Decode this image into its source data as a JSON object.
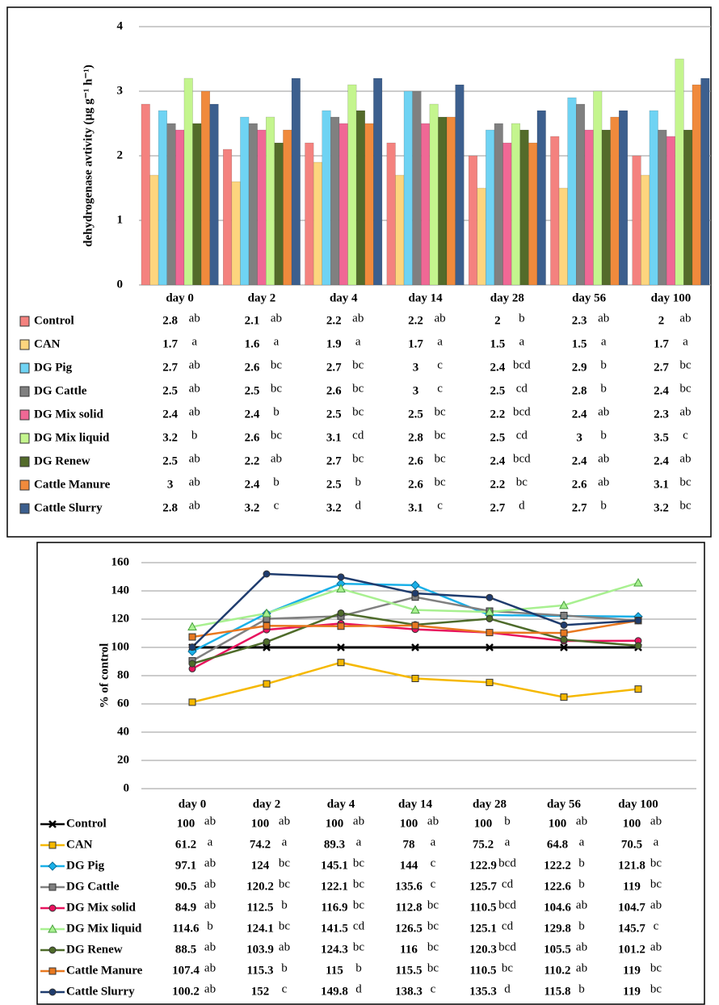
{
  "chart_data": [
    {
      "type": "bar",
      "ylabel": "dehydrogenase avtivity (µg g⁻¹ h⁻¹)",
      "ylim": [
        0,
        4
      ],
      "yticks": [
        0,
        1,
        2,
        3,
        4
      ],
      "grid": true,
      "categories": [
        "day 0",
        "day 2",
        "day 4",
        "day 14",
        "day 28",
        "day 56",
        "day 100"
      ],
      "series": [
        {
          "name": "Control",
          "color": "#f4827f",
          "values": [
            2.8,
            2.1,
            2.2,
            2.2,
            2,
            2.3,
            2
          ],
          "letters": [
            "ab",
            "ab",
            "ab",
            "ab",
            "b",
            "ab",
            "ab"
          ]
        },
        {
          "name": "CAN",
          "color": "#fdd57e",
          "values": [
            1.7,
            1.6,
            1.9,
            1.7,
            1.5,
            1.5,
            1.7
          ],
          "letters": [
            "a",
            "a",
            "a",
            "a",
            "a",
            "a",
            "a"
          ]
        },
        {
          "name": "DG Pig",
          "color": "#6fd3f3",
          "values": [
            2.7,
            2.6,
            2.7,
            3,
            2.4,
            2.9,
            2.7
          ],
          "letters": [
            "ab",
            "bc",
            "bc",
            "c",
            "bcd",
            "b",
            "bc"
          ]
        },
        {
          "name": "DG Cattle",
          "color": "#808080",
          "values": [
            2.5,
            2.5,
            2.6,
            3,
            2.5,
            2.8,
            2.4
          ],
          "letters": [
            "ab",
            "bc",
            "bc",
            "c",
            "cd",
            "b",
            "bc"
          ]
        },
        {
          "name": "DG Mix solid",
          "color": "#f06895",
          "values": [
            2.4,
            2.4,
            2.5,
            2.5,
            2.2,
            2.4,
            2.3
          ],
          "letters": [
            "ab",
            "b",
            "bc",
            "bc",
            "bcd",
            "ab",
            "ab"
          ]
        },
        {
          "name": "DG Mix liquid",
          "color": "#c4f58e",
          "values": [
            3.2,
            2.6,
            3.1,
            2.8,
            2.5,
            3,
            3.5
          ],
          "letters": [
            "b",
            "bc",
            "cd",
            "bc",
            "cd",
            "b",
            "c"
          ]
        },
        {
          "name": "DG Renew",
          "color": "#536b2a",
          "values": [
            2.5,
            2.2,
            2.7,
            2.6,
            2.4,
            2.4,
            2.4
          ],
          "letters": [
            "ab",
            "ab",
            "bc",
            "bc",
            "bcd",
            "ab",
            "ab"
          ]
        },
        {
          "name": "Cattle Manure",
          "color": "#f08a3c",
          "values": [
            3,
            2.4,
            2.5,
            2.6,
            2.2,
            2.6,
            3.1
          ],
          "letters": [
            "ab",
            "b",
            "b",
            "bc",
            "bc",
            "ab",
            "bc"
          ]
        },
        {
          "name": "Cattle Slurry",
          "color": "#3c5f8e",
          "values": [
            2.8,
            3.2,
            3.2,
            3.1,
            2.7,
            2.7,
            3.2
          ],
          "letters": [
            "ab",
            "c",
            "d",
            "c",
            "d",
            "b",
            "bc"
          ]
        }
      ]
    },
    {
      "type": "line",
      "ylabel": "% of control",
      "ylim": [
        0,
        160
      ],
      "yticks": [
        0,
        20,
        40,
        60,
        80,
        100,
        120,
        140,
        160
      ],
      "grid": true,
      "categories": [
        "day 0",
        "day 2",
        "day 4",
        "day 14",
        "day 28",
        "day 56",
        "day 100"
      ],
      "series": [
        {
          "name": "Control",
          "color": "#000000",
          "marker": "x",
          "values": [
            100,
            100,
            100,
            100,
            100,
            100,
            100
          ],
          "letters": [
            "ab",
            "ab",
            "ab",
            "ab",
            "b",
            "ab",
            "ab"
          ]
        },
        {
          "name": "CAN",
          "color": "#f5b800",
          "marker": "square",
          "values": [
            61.2,
            74.2,
            89.3,
            78,
            75.2,
            64.8,
            70.5
          ],
          "letters": [
            "a",
            "a",
            "a",
            "a",
            "a",
            "a",
            "a"
          ]
        },
        {
          "name": "DG Pig",
          "color": "#1ab0e8",
          "marker": "diamond",
          "values": [
            97.1,
            124,
            145.1,
            144,
            122.9,
            122.2,
            121.8
          ],
          "letters": [
            "ab",
            "bc",
            "bc",
            "c",
            "bcd",
            "b",
            "bc"
          ]
        },
        {
          "name": "DG Cattle",
          "color": "#808080",
          "marker": "square",
          "values": [
            90.5,
            120.2,
            122.1,
            135.6,
            125.7,
            122.6,
            119
          ],
          "letters": [
            "ab",
            "bc",
            "bc",
            "c",
            "cd",
            "b",
            "bc"
          ]
        },
        {
          "name": "DG Mix solid",
          "color": "#e8135e",
          "marker": "circle",
          "values": [
            84.9,
            112.5,
            116.9,
            112.8,
            110.5,
            104.6,
            104.7
          ],
          "letters": [
            "ab",
            "b",
            "bc",
            "bc",
            "bcd",
            "ab",
            "ab"
          ]
        },
        {
          "name": "DG Mix liquid",
          "color": "#a8f090",
          "marker": "triangle",
          "values": [
            114.6,
            124.1,
            141.5,
            126.5,
            125.1,
            129.8,
            145.7
          ],
          "letters": [
            "b",
            "bc",
            "cd",
            "bc",
            "cd",
            "b",
            "c"
          ]
        },
        {
          "name": "DG Renew",
          "color": "#4e6b2a",
          "marker": "circle",
          "values": [
            88.5,
            103.9,
            124.3,
            116,
            120.3,
            105.5,
            101.2
          ],
          "letters": [
            "ab",
            "ab",
            "bc",
            "bc",
            "bcd",
            "ab",
            "ab"
          ]
        },
        {
          "name": "Cattle Manure",
          "color": "#e87820",
          "marker": "square",
          "values": [
            107.4,
            115.3,
            115,
            115.5,
            110.5,
            110.2,
            119
          ],
          "letters": [
            "ab",
            "b",
            "b",
            "bc",
            "bc",
            "ab",
            "bc"
          ]
        },
        {
          "name": "Cattle Slurry",
          "color": "#1f3c6e",
          "marker": "circle",
          "values": [
            100.2,
            152,
            149.8,
            138.3,
            135.3,
            115.8,
            119
          ],
          "letters": [
            "ab",
            "c",
            "d",
            "c",
            "d",
            "b",
            "bc"
          ]
        }
      ]
    }
  ]
}
